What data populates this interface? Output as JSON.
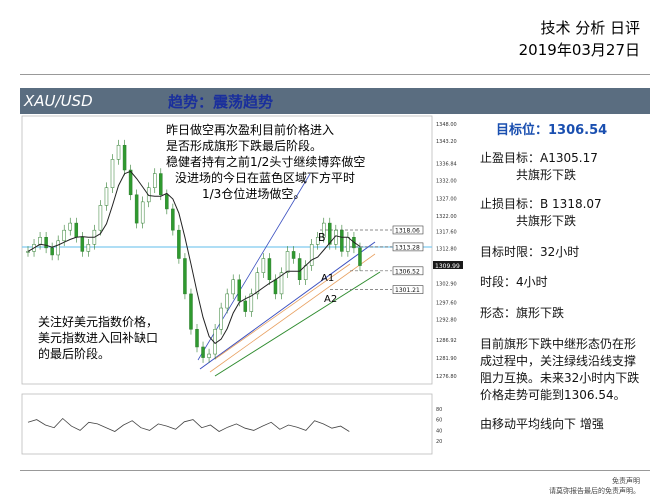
{
  "header": {
    "title": "技术 分析 日评",
    "date": "2019年03月27日"
  },
  "banner": {
    "symbol": "XAU/USD",
    "trend": "趋势：震荡趋势"
  },
  "chart_note_1": [
    "昨日做空再次盈利目前价格进入",
    "是否形成旗形下跌最后阶段。",
    "稳健者持有之前1/2头寸继续博弈做空",
    "没进场的今日在蓝色区域下方平时",
    "1/3仓位进场做空。"
  ],
  "chart_note_2": [
    "关注好美元指数价格，",
    "美元指数进入回补缺口",
    "的最后阶段。"
  ],
  "chart_labels": {
    "b": "B",
    "a1": "A1",
    "a2": "A2"
  },
  "chart_data": {
    "type": "line",
    "price_axis_ticks": [
      "1348.00",
      "1343.20",
      "1336.84",
      "1332.00",
      "1327.00",
      "1322.00",
      "1317.60",
      "1312.80",
      "1308.00",
      "1302.90",
      "1297.60",
      "1292.80",
      "1286.92",
      "1281.90",
      "1276.80"
    ],
    "levels": [
      {
        "label": "1318.06",
        "value": 1318.06
      },
      {
        "label": "1313.28",
        "value": 1313.28
      },
      {
        "label": "1306.52",
        "value": 1306.52
      },
      {
        "label": "1301.21",
        "value": 1301.21
      }
    ],
    "current_price_label": "1309.99",
    "oscillator_ticks": [
      "80",
      "60",
      "40",
      "20"
    ],
    "price_series": [
      1312,
      1314,
      1316,
      1313,
      1311,
      1315,
      1318,
      1320,
      1316,
      1312,
      1314,
      1318,
      1325,
      1330,
      1338,
      1342,
      1335,
      1328,
      1320,
      1326,
      1330,
      1334,
      1328,
      1324,
      1318,
      1310,
      1300,
      1290,
      1285,
      1282,
      1283,
      1290,
      1296,
      1300,
      1304,
      1298,
      1295,
      1300,
      1306,
      1310,
      1304,
      1300,
      1306,
      1312,
      1310,
      1304,
      1308,
      1314,
      1316,
      1320,
      1314,
      1318,
      1312,
      1316,
      1313,
      1308
    ],
    "oscillator_series": [
      55,
      60,
      50,
      45,
      62,
      48,
      40,
      55,
      52,
      45,
      38,
      50,
      58,
      45,
      40,
      52,
      48,
      42,
      56,
      60,
      45,
      50,
      38,
      46,
      52,
      44,
      40,
      48,
      55,
      42,
      50,
      46,
      40,
      58,
      52,
      44,
      48,
      38
    ]
  },
  "sidebar": {
    "target": "目标位：1306.54",
    "stop_profit": [
      "止盈目标：A1305.17",
      "共旗形下跌"
    ],
    "stop_loss": [
      "止损目标：B 1318.07",
      "共旗形下跌"
    ],
    "time_limit": "目标时限：32小时",
    "timeframe": "时段：4小时",
    "pattern": "形态：旗形下跌",
    "summary": [
      "目前旗形下跌中继形态仍在形",
      "成过程中，关注绿线沿线支撑",
      "阻力互换。未来32小时内下跌",
      "价格走势可能到1306.54。"
    ],
    "ma_note": "由移动平均线向下 增强"
  },
  "disclaimer": [
    "免责声明",
    "请莫弥报告最后的免责声明。"
  ]
}
